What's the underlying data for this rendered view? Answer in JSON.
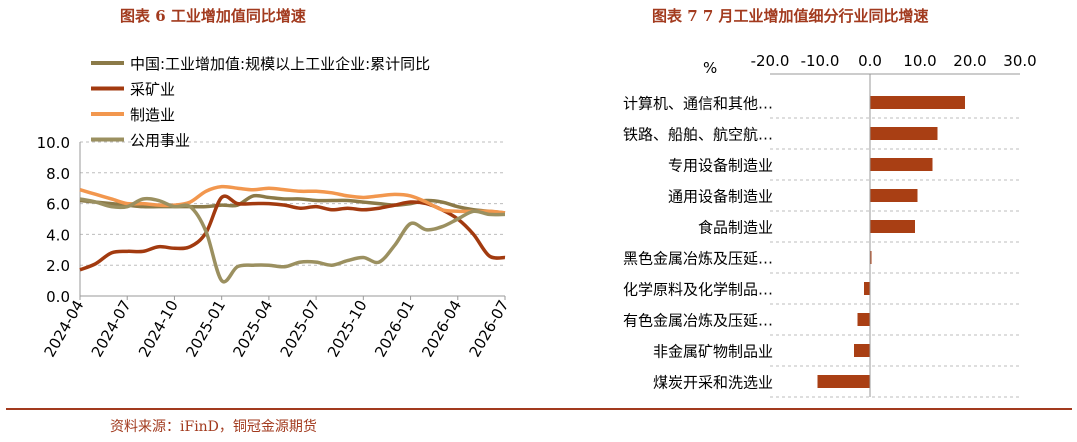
{
  "left_title": "图表 6  工业增加值同比增速",
  "right_title": "图表  7  7 月工业增加值细分行业同比增速",
  "source": "资料来源：iFinD，铜冠金源期货",
  "chart_data": [
    {
      "type": "line",
      "x": [
        "2024-04",
        "2024-05",
        "2024-06",
        "2024-07",
        "2024-08",
        "2024-09",
        "2024-10",
        "2024-11",
        "2024-12",
        "2025-01",
        "2025-02",
        "2025-03",
        "2025-04",
        "2025-05",
        "2025-06",
        "2025-07",
        "2025-08",
        "2025-09",
        "2025-10",
        "2025-11",
        "2025-12",
        "2026-01",
        "2026-02",
        "2026-03",
        "2026-04",
        "2026-05",
        "2026-06",
        "2026-07"
      ],
      "tick_labels": [
        "2024-04",
        "2024-07",
        "2024-10",
        "2025-01",
        "2025-04",
        "2025-07",
        "2025-10",
        "2026-01",
        "2026-04",
        "2026-07"
      ],
      "ylim": [
        0,
        10
      ],
      "yticks": [
        "0.0",
        "2.0",
        "4.0",
        "6.0",
        "8.0",
        "10.0"
      ],
      "legend_position": "top-left",
      "grid": "horizontal-dashed",
      "series": [
        {
          "name": "中国:工业增加值:规模以上工业企业:累计同比",
          "color": "#8b7a48",
          "values": [
            6.2,
            6.1,
            6.0,
            5.9,
            5.8,
            5.8,
            5.8,
            5.8,
            5.8,
            5.9,
            5.9,
            6.5,
            6.4,
            6.3,
            6.3,
            6.2,
            6.2,
            6.2,
            6.1,
            6.0,
            5.9,
            6.0,
            6.2,
            6.1,
            5.8,
            5.6,
            5.5,
            5.4
          ]
        },
        {
          "name": "采矿业",
          "color": "#a23a0f",
          "values": [
            1.7,
            2.1,
            2.8,
            2.9,
            2.9,
            3.2,
            3.1,
            3.2,
            4.1,
            6.4,
            6.0,
            6.0,
            6.0,
            5.9,
            5.7,
            5.8,
            5.6,
            5.7,
            5.6,
            5.7,
            5.9,
            6.1,
            6.0,
            5.6,
            5.0,
            4.0,
            2.6,
            2.5
          ]
        },
        {
          "name": "制造业",
          "color": "#f2974e",
          "values": [
            6.9,
            6.6,
            6.3,
            6.0,
            6.0,
            5.9,
            5.9,
            6.1,
            6.8,
            7.1,
            7.0,
            6.9,
            7.0,
            6.9,
            6.8,
            6.8,
            6.7,
            6.5,
            6.4,
            6.5,
            6.6,
            6.5,
            6.1,
            5.6,
            5.5,
            5.5,
            5.5,
            5.4
          ]
        },
        {
          "name": "公用事业",
          "color": "#9b9060",
          "values": [
            6.3,
            6.1,
            5.8,
            5.8,
            6.3,
            6.2,
            5.8,
            5.8,
            4.2,
            1.0,
            1.9,
            2.0,
            2.0,
            1.9,
            2.2,
            2.2,
            2.0,
            2.3,
            2.5,
            2.2,
            3.3,
            4.7,
            4.3,
            4.5,
            5.0,
            5.5,
            5.3,
            5.3
          ]
        }
      ]
    },
    {
      "type": "bar",
      "orientation": "horizontal",
      "unit_label": "%",
      "xlim": [
        -20,
        30
      ],
      "xticks": [
        "-20.0",
        "-10.0",
        "0.0",
        "10.0",
        "20.0",
        "30.0"
      ],
      "bar_color": "#a93f14",
      "categories": [
        "计算机、通信和其他…",
        "铁路、船舶、航空航…",
        "专用设备制造业",
        "通用设备制造业",
        "食品制造业",
        "黑色金属冶炼及压延…",
        "化学原料及化学制品…",
        "有色金属冶炼及压延…",
        "非金属矿物制品业",
        "煤炭开采和洗选业"
      ],
      "values": [
        19.0,
        13.5,
        12.5,
        9.5,
        9.0,
        0.3,
        -1.2,
        -2.5,
        -3.2,
        -10.5
      ]
    }
  ]
}
